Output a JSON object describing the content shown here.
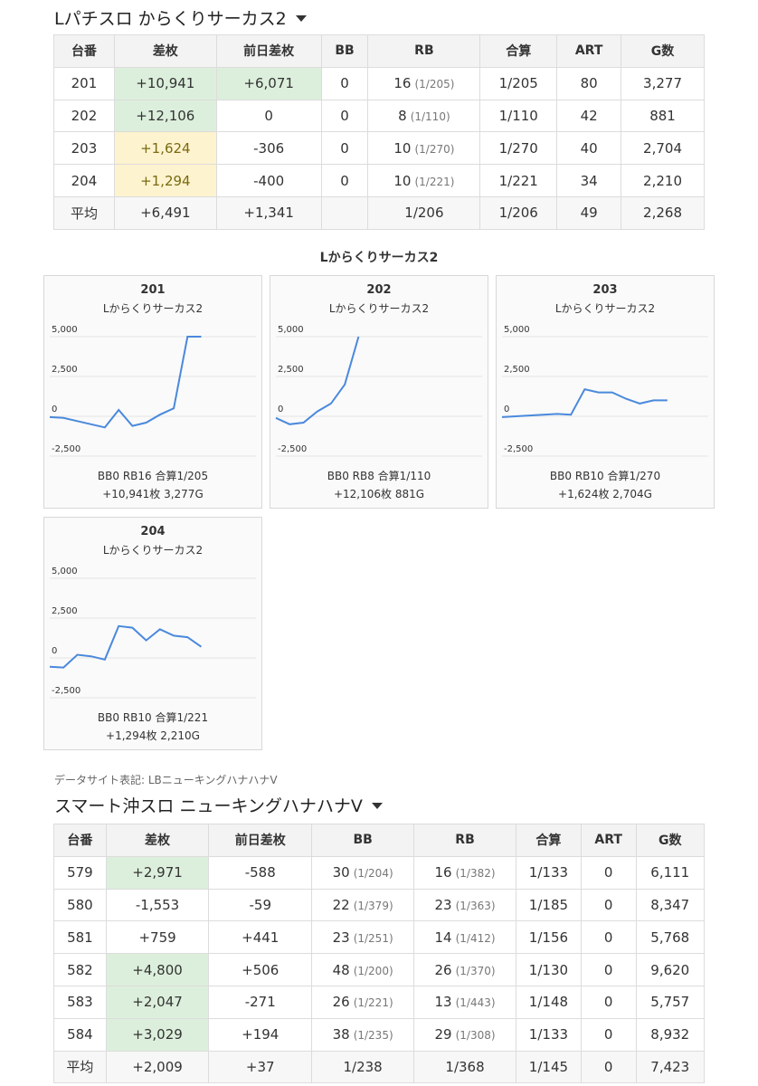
{
  "section1": {
    "title": "Lパチスロ からくりサーカス2",
    "headers": [
      "台番",
      "差枚",
      "前日差枚",
      "BB",
      "RB",
      "合算",
      "ART",
      "G数"
    ],
    "rows": [
      {
        "no": "201",
        "diff": "+10,941",
        "prev": "+6,071",
        "bb": "0",
        "rb": "16",
        "rb_rate": "(1/205)",
        "total": "1/205",
        "art": "80",
        "games": "3,277"
      },
      {
        "no": "202",
        "diff": "+12,106",
        "prev": "0",
        "bb": "0",
        "rb": "8",
        "rb_rate": "(1/110)",
        "total": "1/110",
        "art": "42",
        "games": "881"
      },
      {
        "no": "203",
        "diff": "+1,624",
        "prev": "-306",
        "bb": "0",
        "rb": "10",
        "rb_rate": "(1/270)",
        "total": "1/270",
        "art": "40",
        "games": "2,704"
      },
      {
        "no": "204",
        "diff": "+1,294",
        "prev": "-400",
        "bb": "0",
        "rb": "10",
        "rb_rate": "(1/221)",
        "total": "1/221",
        "art": "34",
        "games": "2,210"
      }
    ],
    "avg": {
      "label": "平均",
      "diff": "+6,491",
      "prev": "+1,341",
      "bb": "",
      "rb": "1/206",
      "total": "1/206",
      "art": "49",
      "games": "2,268"
    }
  },
  "graphs_title": "Lからくりサーカス2",
  "y_ticks": [
    "5,000",
    "2,500",
    "0",
    "-2,500"
  ],
  "chart_data": [
    {
      "type": "line",
      "title": "201",
      "subtitle": "Lからくりサーカス2",
      "ylim": [
        -2500,
        5000
      ],
      "x": [
        0,
        1,
        2,
        3,
        4,
        5,
        6,
        7,
        8,
        9,
        10,
        11
      ],
      "y": [
        -50,
        -100,
        -300,
        -500,
        -700,
        400,
        -600,
        -400,
        100,
        500,
        5000,
        5000
      ],
      "line1": "BB0 RB16 合算1/205",
      "line2": "+10,941枚 3,277G"
    },
    {
      "type": "line",
      "title": "202",
      "subtitle": "Lからくりサーカス2",
      "ylim": [
        -2500,
        5000
      ],
      "x": [
        0,
        1,
        2,
        3,
        4,
        5,
        6
      ],
      "y": [
        -100,
        -500,
        -400,
        300,
        800,
        2000,
        5000
      ],
      "line1": "BB0 RB8 合算1/110",
      "line2": "+12,106枚 881G"
    },
    {
      "type": "line",
      "title": "203",
      "subtitle": "Lからくりサーカス2",
      "ylim": [
        -2500,
        5000
      ],
      "x": [
        0,
        1,
        2,
        3,
        4,
        5,
        6,
        7,
        8,
        9,
        10,
        11,
        12
      ],
      "y": [
        -50,
        0,
        50,
        100,
        150,
        100,
        1700,
        1500,
        1500,
        1100,
        800,
        1000,
        1000
      ],
      "line1": "BB0 RB10 合算1/270",
      "line2": "+1,624枚 2,704G"
    },
    {
      "type": "line",
      "title": "204",
      "subtitle": "Lからくりサーカス2",
      "ylim": [
        -2500,
        5000
      ],
      "x": [
        0,
        1,
        2,
        3,
        4,
        5,
        6,
        7,
        8,
        9,
        10,
        11
      ],
      "y": [
        -550,
        -600,
        200,
        100,
        -100,
        2000,
        1900,
        1100,
        1800,
        1400,
        1300,
        700
      ],
      "line1": "BB0 RB10 合算1/221",
      "line2": "+1,294枚 2,210G"
    }
  ],
  "site_note": "データサイト表記: LBニューキングハナハナV",
  "section2": {
    "title": "スマート沖スロ ニューキングハナハナV",
    "headers": [
      "台番",
      "差枚",
      "前日差枚",
      "BB",
      "RB",
      "合算",
      "ART",
      "G数"
    ],
    "rows": [
      {
        "no": "579",
        "diff": "+2,971",
        "prev": "-588",
        "bb": "30",
        "bb_rate": "(1/204)",
        "rb": "16",
        "rb_rate": "(1/382)",
        "total": "1/133",
        "art": "0",
        "games": "6,111"
      },
      {
        "no": "580",
        "diff": "-1,553",
        "prev": "-59",
        "bb": "22",
        "bb_rate": "(1/379)",
        "rb": "23",
        "rb_rate": "(1/363)",
        "total": "1/185",
        "art": "0",
        "games": "8,347"
      },
      {
        "no": "581",
        "diff": "+759",
        "prev": "+441",
        "bb": "23",
        "bb_rate": "(1/251)",
        "rb": "14",
        "rb_rate": "(1/412)",
        "total": "1/156",
        "art": "0",
        "games": "5,768"
      },
      {
        "no": "582",
        "diff": "+4,800",
        "prev": "+506",
        "bb": "48",
        "bb_rate": "(1/200)",
        "rb": "26",
        "rb_rate": "(1/370)",
        "total": "1/130",
        "art": "0",
        "games": "9,620"
      },
      {
        "no": "583",
        "diff": "+2,047",
        "prev": "-271",
        "bb": "26",
        "bb_rate": "(1/221)",
        "rb": "13",
        "rb_rate": "(1/443)",
        "total": "1/148",
        "art": "0",
        "games": "5,757"
      },
      {
        "no": "584",
        "diff": "+3,029",
        "prev": "+194",
        "bb": "38",
        "bb_rate": "(1/235)",
        "rb": "29",
        "rb_rate": "(1/308)",
        "total": "1/133",
        "art": "0",
        "games": "8,932"
      }
    ],
    "avg": {
      "label": "平均",
      "diff": "+2,009",
      "prev": "+37",
      "bb": "1/238",
      "rb": "1/368",
      "total": "1/145",
      "art": "0",
      "games": "7,423"
    }
  },
  "colors": {
    "line": "#4a89dc",
    "positive": "#2e6b2e",
    "negative": "#c0392b",
    "highlight_green": "#dcefdc",
    "highlight_yellow": "#fdf3cf"
  }
}
